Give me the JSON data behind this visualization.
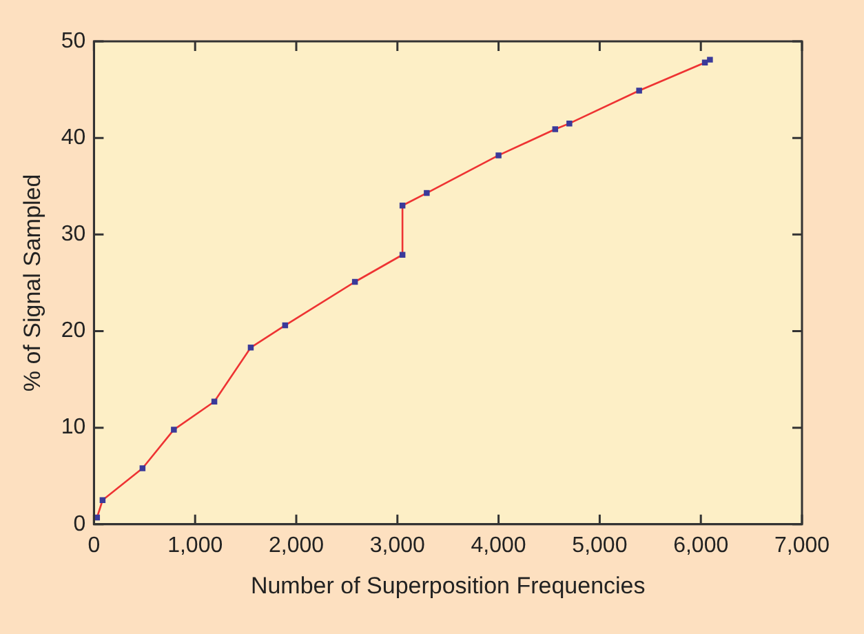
{
  "chart_data": {
    "type": "line",
    "xlabel": "Number of Superposition Frequencies",
    "ylabel": "% of Signal Sampled",
    "x": [
      30,
      85,
      480,
      790,
      1190,
      1550,
      1890,
      2580,
      3050,
      3050,
      3290,
      4000,
      4560,
      4700,
      5390,
      6040,
      6090
    ],
    "series": [
      {
        "color": "#ee3333",
        "colors": [
          "#3a3a9a",
          "#3a3a9a",
          "#3a3a9a",
          "#3a3a9a",
          "#3a3a9a",
          "#3a3a9a",
          "#3a3a9a",
          "#3a3a9a",
          "#3a3a9a",
          "#3a3a9a",
          "#3a3a9a",
          "#3a3a9a",
          "#3a3a9a",
          "#3a3a9a",
          "#3a3a9a",
          "#3a3a9a",
          "#3a3a9a"
        ],
        "values": [
          0.7,
          2.5,
          5.8,
          9.8,
          12.7,
          18.3,
          20.6,
          25.1,
          27.9,
          33.0,
          34.3,
          38.2,
          40.9,
          41.5,
          44.9,
          47.8,
          48.1
        ]
      }
    ],
    "marker": "square",
    "line_style": "solid",
    "xlim": [
      0,
      7000
    ],
    "xticks": [
      {
        "value": 0,
        "label": "0"
      },
      {
        "value": 1000,
        "label": "1,000"
      },
      {
        "value": 2000,
        "label": "2,000"
      },
      {
        "value": 3000,
        "label": "3,000"
      },
      {
        "value": 4000,
        "label": "4,000"
      },
      {
        "value": 5000,
        "label": "5,000"
      },
      {
        "value": 6000,
        "label": "6,000"
      },
      {
        "value": 7000,
        "label": "7,000"
      }
    ],
    "ylim": [
      0,
      50
    ],
    "yticks": [
      0,
      10,
      20,
      30,
      40,
      50
    ],
    "grid": false,
    "legend": false
  }
}
